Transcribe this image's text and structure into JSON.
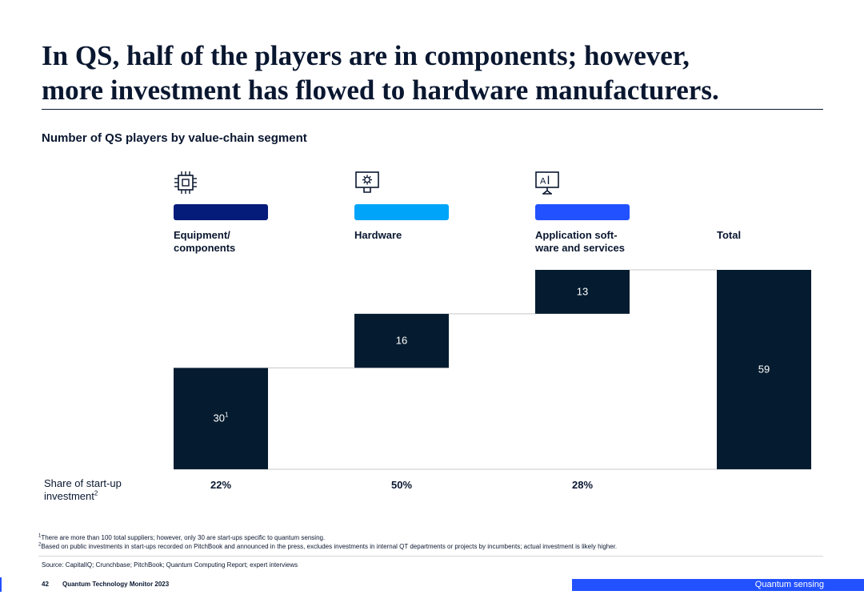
{
  "page": {
    "title_lines": [
      "In QS, half of the players are in components; however,",
      "more investment has flowed to hardware manufacturers."
    ],
    "subtitle": "Number of QS players by value-chain segment"
  },
  "segments": [
    {
      "icon": "chip-icon",
      "color": "#051c7a",
      "label_lines": [
        "Equipment/",
        "components"
      ]
    },
    {
      "icon": "gear-monitor-icon",
      "color": "#00a4f9",
      "label_lines": [
        "Hardware"
      ]
    },
    {
      "icon": "ai-monitor-icon",
      "color": "#2251ff",
      "label_lines": [
        "Application soft-",
        "ware and services"
      ]
    },
    {
      "icon": "",
      "color": "",
      "label_lines": [
        "Total"
      ]
    }
  ],
  "chart_data": {
    "type": "bar",
    "subtype": "waterfall",
    "title": "Number of QS players by value-chain segment",
    "categories": [
      "Equipment/components",
      "Hardware",
      "Application software and services",
      "Total"
    ],
    "values": [
      30,
      16,
      13,
      59
    ],
    "value_labels": [
      "30",
      "16",
      "13",
      "59"
    ],
    "value_label_superscripts": [
      "1",
      "",
      "",
      ""
    ],
    "bar_color": "#051c30",
    "xlabel": "",
    "ylabel": "",
    "ylim": [
      0,
      59
    ],
    "grid": false,
    "legend": "none"
  },
  "share": {
    "label_lines": [
      "Share of start-up",
      "investment"
    ],
    "label_superscript": "2",
    "values": [
      "22%",
      "50%",
      "28%"
    ]
  },
  "footnotes": [
    {
      "mark": "1",
      "text": "There are more than 100 total suppliers; however, only 30 are start-ups specific to quantum sensing."
    },
    {
      "mark": "2",
      "text": "Based on public investments in start-ups recorded on PitchBook and announced in the press, excludes investments in internal QT departments or projects by incumbents; actual investment is likely higher."
    }
  ],
  "source": "Source: CapitalIQ; Crunchbase; PitchBook; Quantum Computing Report; expert interviews",
  "footer": {
    "page_number": "42",
    "publication": "Quantum Technology Monitor 2023",
    "section": "Quantum sensing"
  }
}
